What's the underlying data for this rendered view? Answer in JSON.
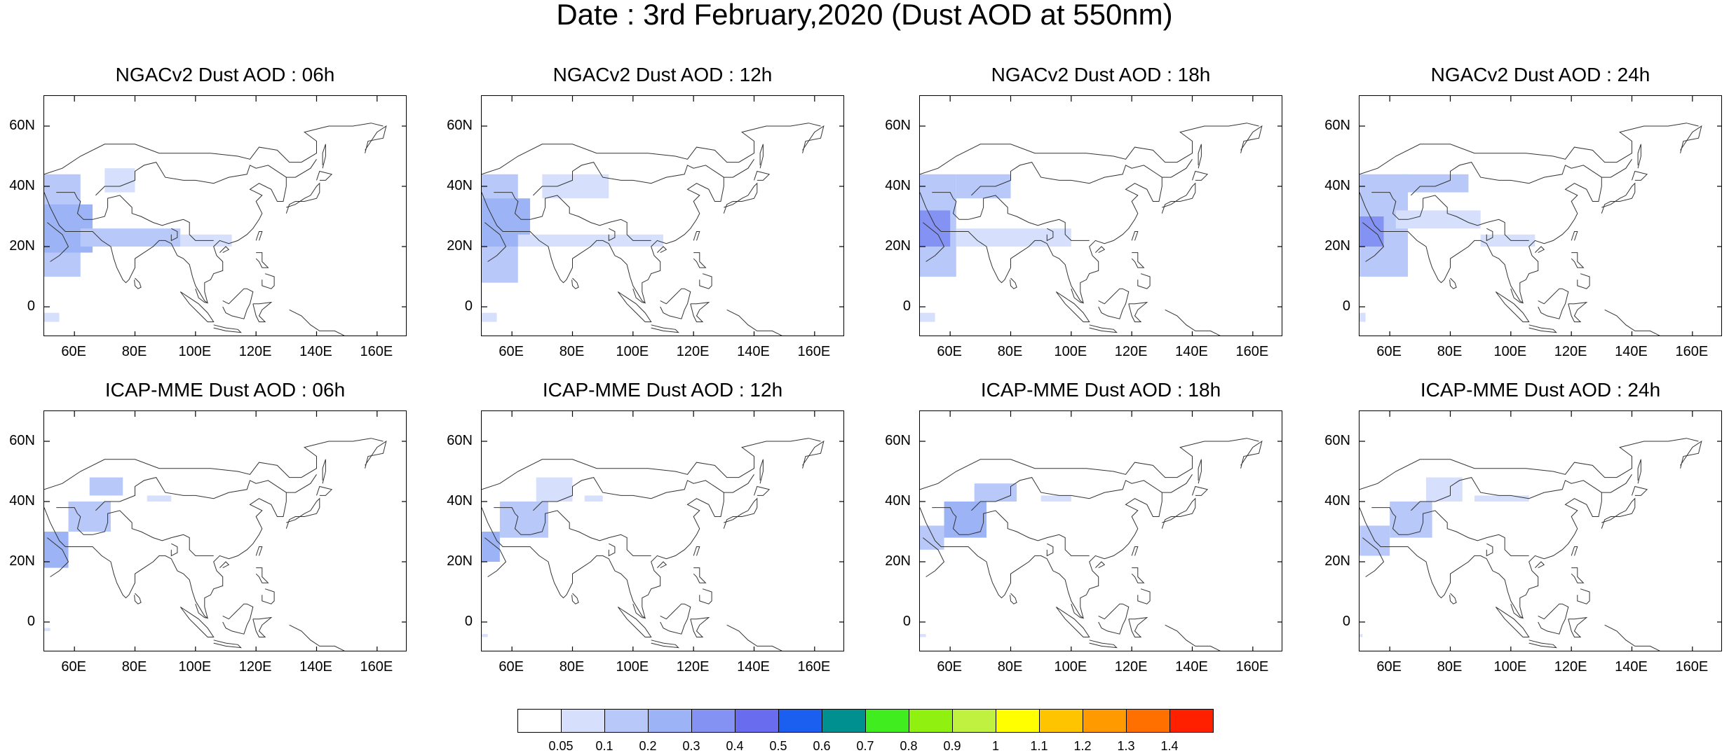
{
  "title": "Date : 3rd February,2020 (Dust AOD at 550nm)",
  "x_ticks": [
    "60E",
    "80E",
    "100E",
    "120E",
    "140E",
    "160E"
  ],
  "y_ticks": [
    "60N",
    "40N",
    "20N",
    "0"
  ],
  "panels": [
    {
      "title": "NGACv2 Dust AOD : 06h",
      "model": "NGACv2",
      "lead": "06h"
    },
    {
      "title": "NGACv2 Dust AOD : 12h",
      "model": "NGACv2",
      "lead": "12h"
    },
    {
      "title": "NGACv2 Dust AOD : 18h",
      "model": "NGACv2",
      "lead": "18h"
    },
    {
      "title": "NGACv2 Dust AOD : 24h",
      "model": "NGACv2",
      "lead": "24h"
    },
    {
      "title": "ICAP-MME Dust AOD : 06h",
      "model": "ICAP-MME",
      "lead": "06h"
    },
    {
      "title": "ICAP-MME Dust AOD : 12h",
      "model": "ICAP-MME",
      "lead": "12h"
    },
    {
      "title": "ICAP-MME Dust AOD : 18h",
      "model": "ICAP-MME",
      "lead": "18h"
    },
    {
      "title": "ICAP-MME Dust AOD : 24h",
      "model": "ICAP-MME",
      "lead": "24h"
    }
  ],
  "map_extent": {
    "lon": [
      50,
      170
    ],
    "lat": [
      -10,
      70
    ]
  },
  "colorbar": {
    "labels": [
      "0.05",
      "0.1",
      "0.2",
      "0.3",
      "0.4",
      "0.5",
      "0.6",
      "0.7",
      "0.8",
      "0.9",
      "1",
      "1.1",
      "1.2",
      "1.3",
      "1.4"
    ],
    "colors": [
      "#ffffff",
      "#d6e0fc",
      "#b8c8f8",
      "#9cb4f6",
      "#8493f3",
      "#6a6cf0",
      "#1a5ff0",
      "#009090",
      "#40ee20",
      "#90f010",
      "#c0f040",
      "#ffff00",
      "#ffc400",
      "#ff9a00",
      "#ff7000",
      "#ff2000"
    ]
  }
}
